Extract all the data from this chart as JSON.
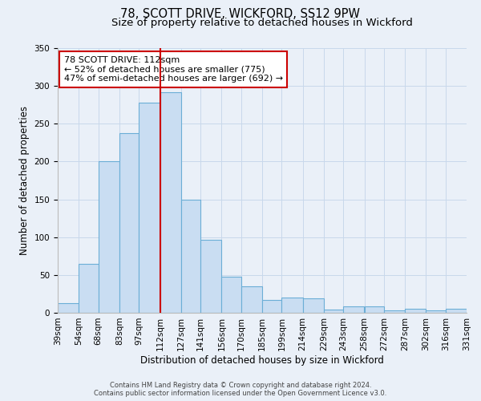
{
  "title": "78, SCOTT DRIVE, WICKFORD, SS12 9PW",
  "subtitle": "Size of property relative to detached houses in Wickford",
  "xlabel": "Distribution of detached houses by size in Wickford",
  "ylabel": "Number of detached properties",
  "bin_labels": [
    "39sqm",
    "54sqm",
    "68sqm",
    "83sqm",
    "97sqm",
    "112sqm",
    "127sqm",
    "141sqm",
    "156sqm",
    "170sqm",
    "185sqm",
    "199sqm",
    "214sqm",
    "229sqm",
    "243sqm",
    "258sqm",
    "272sqm",
    "287sqm",
    "302sqm",
    "316sqm",
    "331sqm"
  ],
  "bar_values": [
    13,
    65,
    200,
    238,
    278,
    292,
    150,
    97,
    48,
    35,
    17,
    20,
    19,
    4,
    9,
    8,
    3,
    5,
    3,
    5
  ],
  "bin_edges": [
    39,
    54,
    68,
    83,
    97,
    112,
    127,
    141,
    156,
    170,
    185,
    199,
    214,
    229,
    243,
    258,
    272,
    287,
    302,
    316,
    331
  ],
  "bar_color": "#c9ddf2",
  "bar_edge_color": "#6baed6",
  "vline_x": 112,
  "vline_color": "#cc0000",
  "ylim": [
    0,
    350
  ],
  "yticks": [
    0,
    50,
    100,
    150,
    200,
    250,
    300,
    350
  ],
  "grid_color": "#c8d8eb",
  "background_color": "#eaf0f8",
  "annotation_text": "78 SCOTT DRIVE: 112sqm\n← 52% of detached houses are smaller (775)\n47% of semi-detached houses are larger (692) →",
  "annotation_box_color": "#ffffff",
  "annotation_border_color": "#cc0000",
  "footer_line1": "Contains HM Land Registry data © Crown copyright and database right 2024.",
  "footer_line2": "Contains public sector information licensed under the Open Government Licence v3.0.",
  "title_fontsize": 10.5,
  "subtitle_fontsize": 9.5,
  "tick_fontsize": 7.5,
  "ylabel_fontsize": 8.5,
  "xlabel_fontsize": 8.5,
  "annotation_fontsize": 8,
  "footer_fontsize": 6
}
